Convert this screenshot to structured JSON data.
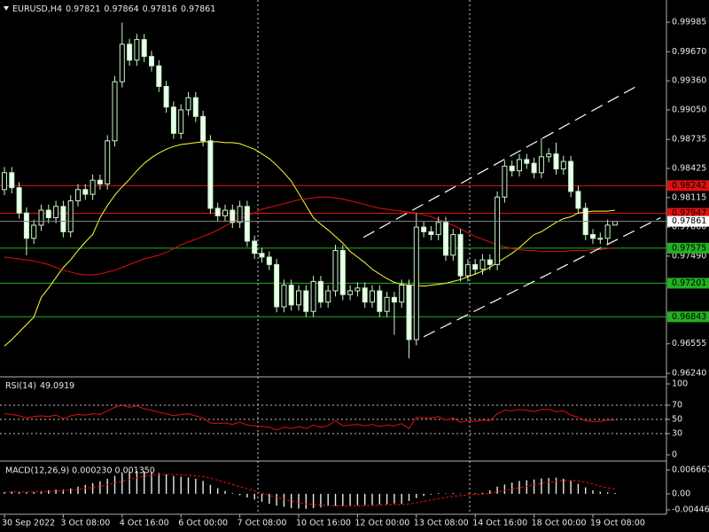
{
  "chart_data": [
    {
      "type": "candlestick",
      "title": "EURUSD,H4",
      "categories": [
        "30 Sep 2022",
        null,
        null,
        null,
        null,
        null,
        null,
        null,
        "3 Oct 08:00",
        null,
        null,
        null,
        null,
        null,
        null,
        null,
        "4 Oct 16:00",
        null,
        null,
        null,
        null,
        null,
        null,
        null,
        "6 Oct 00:00",
        null,
        null,
        null,
        null,
        null,
        null,
        null,
        "7 Oct 08:00",
        null,
        null,
        null,
        null,
        null,
        null,
        null,
        "10 Oct 16:00",
        null,
        null,
        null,
        null,
        null,
        null,
        null,
        "12 Oct 00:00",
        null,
        null,
        null,
        null,
        null,
        null,
        null,
        "13 Oct 08:00",
        null,
        null,
        null,
        null,
        null,
        null,
        null,
        "14 Oct 16:00",
        null,
        null,
        null,
        null,
        null,
        null,
        null,
        "18 Oct 00:00",
        null,
        null,
        null,
        null,
        null,
        null,
        null,
        "19 Oct 08:00",
        null,
        null,
        null
      ],
      "open": [
        0.982,
        0.9838,
        0.9822,
        0.9795,
        0.9768,
        0.9782,
        0.9798,
        0.979,
        0.9802,
        0.9775,
        0.9808,
        0.982,
        0.9815,
        0.983,
        0.9826,
        0.9872,
        0.9935,
        0.9975,
        0.9958,
        0.998,
        0.9962,
        0.9952,
        0.993,
        0.9908,
        0.988,
        0.9905,
        0.9918,
        0.9898,
        0.9872,
        0.98,
        0.9792,
        0.9798,
        0.9785,
        0.9802,
        0.9765,
        0.9752,
        0.9748,
        0.974,
        0.9695,
        0.9718,
        0.9697,
        0.9712,
        0.969,
        0.9722,
        0.97,
        0.9712,
        0.9755,
        0.9708,
        0.9712,
        0.9715,
        0.97,
        0.9712,
        0.969,
        0.9705,
        0.97,
        0.9718,
        0.966,
        0.978,
        0.9775,
        0.9772,
        0.9785,
        0.975,
        0.9772,
        0.9728,
        0.974,
        0.9735,
        0.9745,
        0.974,
        0.9812,
        0.9845,
        0.984,
        0.9852,
        0.9848,
        0.9838,
        0.9855,
        0.9858,
        0.9842,
        0.985,
        0.9818,
        0.98,
        0.9772,
        0.9768,
        0.9768,
        0.97821
      ],
      "high": [
        0.9844,
        0.9844,
        0.9828,
        0.9801,
        0.9788,
        0.9804,
        0.9804,
        0.9808,
        0.9808,
        0.9814,
        0.9826,
        0.9826,
        0.9836,
        0.9836,
        0.9878,
        0.9941,
        0.9998,
        0.9981,
        0.9986,
        0.9986,
        0.9968,
        0.9958,
        0.9936,
        0.9914,
        0.9911,
        0.9924,
        0.9924,
        0.9904,
        0.9878,
        0.9806,
        0.9804,
        0.9804,
        0.9808,
        0.9808,
        0.9771,
        0.9758,
        0.9754,
        0.9746,
        0.9724,
        0.9724,
        0.9718,
        0.9718,
        0.9728,
        0.9728,
        0.9718,
        0.9761,
        0.9761,
        0.9718,
        0.9721,
        0.9721,
        0.9718,
        0.9718,
        0.9711,
        0.9711,
        0.9724,
        0.9724,
        0.9795,
        0.9786,
        0.9781,
        0.9791,
        0.9791,
        0.9778,
        0.9778,
        0.9746,
        0.9746,
        0.9751,
        0.9751,
        0.9818,
        0.9851,
        0.9851,
        0.9858,
        0.9858,
        0.9854,
        0.9875,
        0.9864,
        0.987,
        0.9856,
        0.9856,
        0.9824,
        0.9806,
        0.9778,
        0.9774,
        0.9788,
        0.97864
      ],
      "low": [
        0.9814,
        0.9816,
        0.9789,
        0.975,
        0.9762,
        0.9776,
        0.9784,
        0.9784,
        0.9769,
        0.9769,
        0.9802,
        0.9809,
        0.9809,
        0.982,
        0.982,
        0.9866,
        0.9929,
        0.9952,
        0.9952,
        0.9956,
        0.9946,
        0.9924,
        0.9902,
        0.9874,
        0.9874,
        0.9899,
        0.9892,
        0.9866,
        0.9794,
        0.9786,
        0.9786,
        0.9779,
        0.9779,
        0.9759,
        0.9746,
        0.9742,
        0.9734,
        0.9689,
        0.9689,
        0.9691,
        0.9691,
        0.9684,
        0.9684,
        0.9694,
        0.9694,
        0.9706,
        0.9702,
        0.9702,
        0.9706,
        0.9694,
        0.9694,
        0.9684,
        0.9684,
        0.9665,
        0.9694,
        0.964,
        0.9654,
        0.9769,
        0.9766,
        0.9766,
        0.9744,
        0.9744,
        0.9722,
        0.9722,
        0.9729,
        0.9729,
        0.9734,
        0.9734,
        0.9806,
        0.9834,
        0.9834,
        0.9842,
        0.9832,
        0.9832,
        0.9849,
        0.9836,
        0.9836,
        0.9812,
        0.9794,
        0.9766,
        0.9762,
        0.9762,
        0.9762,
        0.97816
      ],
      "close": [
        0.9838,
        0.9822,
        0.9795,
        0.9768,
        0.9782,
        0.9798,
        0.979,
        0.9802,
        0.9775,
        0.9808,
        0.982,
        0.9815,
        0.983,
        0.9826,
        0.9872,
        0.9935,
        0.9975,
        0.9958,
        0.998,
        0.9962,
        0.9952,
        0.993,
        0.9908,
        0.988,
        0.9905,
        0.9918,
        0.9898,
        0.9872,
        0.98,
        0.9792,
        0.9798,
        0.9785,
        0.9802,
        0.9765,
        0.9752,
        0.9748,
        0.974,
        0.9695,
        0.9718,
        0.9697,
        0.9712,
        0.969,
        0.9722,
        0.97,
        0.9712,
        0.9755,
        0.9708,
        0.9712,
        0.9715,
        0.97,
        0.9712,
        0.969,
        0.9705,
        0.97,
        0.9718,
        0.966,
        0.978,
        0.9775,
        0.9772,
        0.9785,
        0.975,
        0.9772,
        0.9728,
        0.974,
        0.9735,
        0.9745,
        0.974,
        0.9812,
        0.9845,
        0.984,
        0.9852,
        0.9848,
        0.9838,
        0.9855,
        0.9858,
        0.9842,
        0.985,
        0.9818,
        0.98,
        0.9772,
        0.9768,
        0.9768,
        0.97821,
        0.97861
      ],
      "up_fill": "#000000",
      "down_fill": "#eaffea",
      "candle_stroke": "#c8f5c8",
      "lines": [
        {
          "color": "#ffff33",
          "values": [
            0.9653,
            0.966,
            0.9668,
            0.9676,
            0.9684,
            0.9705,
            0.9715,
            0.9726,
            0.9737,
            0.9745,
            0.9755,
            0.9764,
            0.9772,
            0.979,
            0.9803,
            0.9814,
            0.9823,
            0.9831,
            0.984,
            0.9848,
            0.9854,
            0.9859,
            0.9863,
            0.9866,
            0.9868,
            0.9869,
            0.987,
            0.9871,
            0.9871,
            0.9871,
            0.987,
            0.987,
            0.9869,
            0.9866,
            0.9863,
            0.9858,
            0.9853,
            0.9846,
            0.9838,
            0.9829,
            0.9816,
            0.9803,
            0.979,
            0.9783,
            0.9777,
            0.977,
            0.9763,
            0.9754,
            0.9748,
            0.9742,
            0.9735,
            0.973,
            0.9725,
            0.9721,
            0.9719,
            0.9718,
            0.9718,
            0.9717,
            0.9718,
            0.9719,
            0.972,
            0.9722,
            0.9724,
            0.9727,
            0.973,
            0.9733,
            0.9737,
            0.9742,
            0.9747,
            0.9752,
            0.9758,
            0.9765,
            0.9772,
            0.9775,
            0.978,
            0.9785,
            0.9789,
            0.9791,
            0.9795,
            0.9796,
            0.9797,
            0.9797,
            0.9797,
            0.9798
          ]
        },
        {
          "color": "#e01010",
          "values": [
            0.9748,
            0.9747,
            0.9746,
            0.9745,
            0.9744,
            0.9742,
            0.974,
            0.9737,
            0.9734,
            0.9732,
            0.973,
            0.9729,
            0.9729,
            0.973,
            0.9732,
            0.9734,
            0.9737,
            0.974,
            0.9743,
            0.9746,
            0.9748,
            0.975,
            0.9753,
            0.9757,
            0.9761,
            0.9764,
            0.9767,
            0.977,
            0.9773,
            0.9777,
            0.9781,
            0.9785,
            0.9789,
            0.9792,
            0.9795,
            0.9799,
            0.9801,
            0.9803,
            0.9805,
            0.9807,
            0.9809,
            0.981,
            0.9811,
            0.9812,
            0.9812,
            0.9811,
            0.981,
            0.9808,
            0.9806,
            0.9804,
            0.9802,
            0.98,
            0.9799,
            0.9798,
            0.9797,
            0.9796,
            0.9795,
            0.9793,
            0.9791,
            0.9788,
            0.9785,
            0.9782,
            0.9778,
            0.9774,
            0.977,
            0.9767,
            0.9764,
            0.9761,
            0.9759,
            0.9757,
            0.9756,
            0.9755,
            0.9755,
            0.9754,
            0.9754,
            0.9754,
            0.9754,
            0.9755,
            0.9755,
            0.9755,
            0.9756,
            0.9756,
            0.9757,
            0.9758
          ]
        }
      ],
      "trendlines": [
        {
          "color": "#ffffff",
          "x": [
            48.8,
            85.9
          ],
          "y": [
            0.9769,
            0.993
          ]
        },
        {
          "color": "#ffffff",
          "x": [
            57.0,
            89.2
          ],
          "y": [
            0.9663,
            0.979
          ]
        }
      ],
      "levels": [
        {
          "value": 0.98242,
          "color": "#e01010"
        },
        {
          "value": 0.97947,
          "color": "#e01010"
        },
        {
          "value": 0.97575,
          "color": "#22b022"
        },
        {
          "value": 0.97201,
          "color": "#22b022"
        },
        {
          "value": 0.96843,
          "color": "#22b022"
        }
      ],
      "last_price": 0.97861,
      "ylim": [
        0.96212,
        1.00203
      ],
      "yticks": [
        0.99985,
        {
          "value": 0.9967,
          "label": "0.99670"
        },
        {
          "value": 0.9936,
          "label": "0.99360"
        },
        {
          "value": 0.9905,
          "label": "0.99050"
        },
        0.98735,
        0.98425,
        0.98115,
        {
          "value": 0.978,
          "label": "0.97800"
        },
        {
          "value": 0.9749,
          "label": "0.97490"
        },
        0.96555,
        {
          "value": 0.9624,
          "label": "0.96240"
        }
      ]
    },
    {
      "type": "line",
      "title": "RSI(14)",
      "series": [
        {
          "color": "#e01010",
          "values": [
            58,
            57,
            55,
            52,
            54,
            55,
            54,
            56,
            51,
            55,
            57,
            56,
            58,
            57,
            62,
            67,
            70,
            67,
            69,
            65,
            63,
            60,
            58,
            55,
            57,
            58,
            55,
            52,
            45,
            44,
            45,
            43,
            46,
            42,
            41,
            40,
            39,
            35,
            39,
            37,
            40,
            37,
            42,
            39,
            41,
            48,
            41,
            42,
            43,
            41,
            43,
            40,
            42,
            41,
            44,
            37,
            53,
            52,
            52,
            54,
            49,
            52,
            46,
            48,
            47,
            49,
            48,
            58,
            63,
            62,
            64,
            63,
            61,
            64,
            64,
            61,
            62,
            56,
            53,
            48,
            47,
            47,
            49,
            49.0919
          ]
        }
      ],
      "levels": [
        70,
        50,
        30
      ],
      "ylim": [
        -6.25,
        107.5
      ],
      "yticks": [
        100,
        70,
        50,
        30,
        0
      ]
    },
    {
      "type": "histogram_line",
      "title": "MACD(12,26,9) 0.000230 0.001350",
      "series": [
        {
          "type": "bar",
          "color": "#e8e8e8",
          "values": [
            0.0005,
            0.0006,
            0.0006,
            0.0004,
            0.0005,
            0.0008,
            0.001,
            0.0012,
            0.0012,
            0.0015,
            0.002,
            0.0025,
            0.003,
            0.0035,
            0.0042,
            0.005,
            0.0058,
            0.0062,
            0.0064,
            0.0063,
            0.006,
            0.0058,
            0.0054,
            0.005,
            0.0048,
            0.0046,
            0.0042,
            0.0036,
            0.0025,
            0.0016,
            0.0008,
            0.0002,
            -0.0004,
            -0.001,
            -0.0016,
            -0.0022,
            -0.0028,
            -0.0033,
            -0.0036,
            -0.004,
            -0.0041,
            -0.0042,
            -0.004,
            -0.0038,
            -0.0033,
            -0.0034,
            -0.0034,
            -0.0033,
            -0.0032,
            -0.0031,
            -0.0031,
            -0.003,
            -0.0029,
            -0.0027,
            -0.0028,
            -0.002,
            -0.0012,
            -0.0006,
            -0.0002,
            0.0002,
            0.0001,
            0.0002,
            0.0001,
            0.0001,
            0.0002,
            0.0003,
            0.001,
            0.002,
            0.0026,
            0.0031,
            0.0036,
            0.0038,
            0.004,
            0.0043,
            0.0044,
            0.0045,
            0.0042,
            0.0036,
            0.0028,
            0.0018,
            0.001,
            0.0006,
            0.0004,
            0.00023
          ]
        },
        {
          "type": "line",
          "color": "#e01010",
          "values": [
            0.0004,
            0.0005,
            0.0005,
            0.0005,
            0.0005,
            0.0006,
            0.0007,
            0.0008,
            0.0009,
            0.001,
            0.0012,
            0.0015,
            0.0018,
            0.0021,
            0.0025,
            0.003,
            0.0035,
            0.004,
            0.0045,
            0.0049,
            0.0052,
            0.0054,
            0.0054,
            0.0054,
            0.0053,
            0.0052,
            0.005,
            0.0048,
            0.0044,
            0.0038,
            0.0032,
            0.0026,
            0.002,
            0.0014,
            0.0008,
            0.0002,
            -0.0004,
            -0.001,
            -0.0015,
            -0.002,
            -0.0024,
            -0.0028,
            -0.003,
            -0.0032,
            -0.0033,
            -0.0033,
            -0.0034,
            -0.0034,
            -0.0034,
            -0.0033,
            -0.0033,
            -0.0032,
            -0.0031,
            -0.003,
            -0.003,
            -0.0028,
            -0.0025,
            -0.0021,
            -0.0017,
            -0.0013,
            -0.001,
            -0.0007,
            -0.0005,
            -0.0003,
            -0.0002,
            -0.0001,
            0.0001,
            0.0005,
            0.0009,
            0.0013,
            0.0017,
            0.0021,
            0.0025,
            0.0029,
            0.0032,
            0.0035,
            0.0037,
            0.0037,
            0.0036,
            0.0032,
            0.0027,
            0.0021,
            0.0017,
            0.00135
          ]
        }
      ],
      "ylim": [
        -0.005706,
        0.008894
      ],
      "yticks": [
        0.006667,
        {
          "value": 0,
          "label": "0.00"
        },
        -0.004469
      ]
    }
  ]
}
